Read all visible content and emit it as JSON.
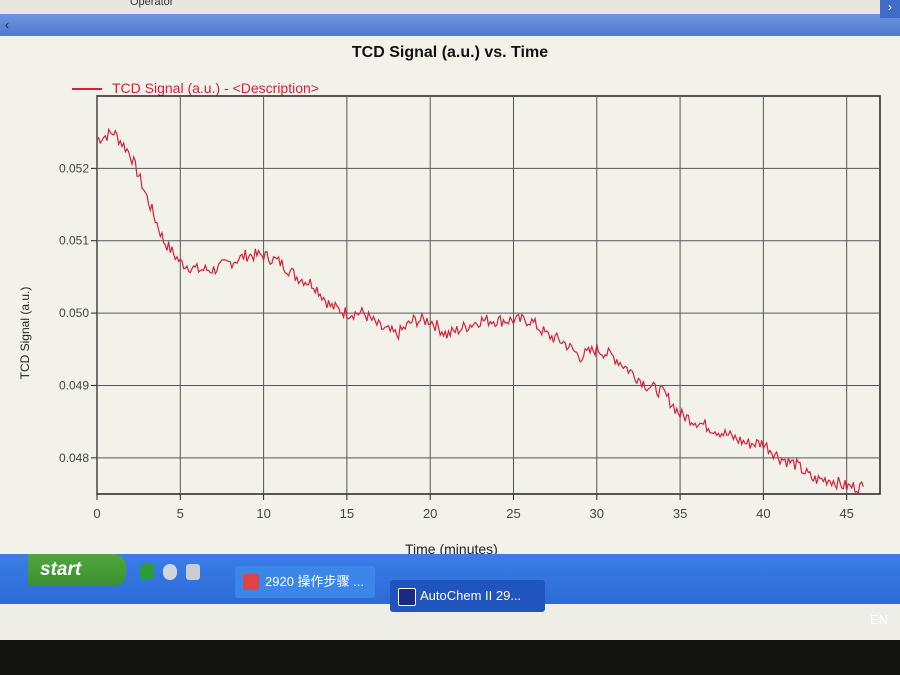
{
  "window": {
    "top_text": "Operator",
    "scroll_left": "‹",
    "scroll_right": "›"
  },
  "chart_data": {
    "type": "line",
    "title": "TCD Signal (a.u.) vs. Time",
    "xlabel": "Time (minutes)",
    "ylabel": "TCD Signal (a.u.)",
    "xlim": [
      0,
      47
    ],
    "ylim": [
      0.0475,
      0.053
    ],
    "xticks": [
      "0",
      "5",
      "10",
      "15",
      "20",
      "25",
      "30",
      "35",
      "40",
      "45"
    ],
    "yticks": [
      "0.048",
      "0.049",
      "0.050",
      "0.051",
      "0.052"
    ],
    "grid": true,
    "legend_position": "top-left",
    "series": [
      {
        "name": "TCD Signal (a.u.) - <Description>",
        "color": "#d8203a",
        "x": [
          0,
          1,
          2,
          3,
          4,
          5,
          6,
          7,
          8,
          9,
          10,
          11,
          12,
          13,
          14,
          15,
          16,
          17,
          18,
          19,
          20,
          21,
          22,
          23,
          24,
          25,
          26,
          27,
          28,
          29,
          30,
          31,
          32,
          33,
          34,
          35,
          36,
          37,
          38,
          39,
          40,
          41,
          42,
          43,
          44,
          45,
          46
        ],
        "y": [
          0.0524,
          0.0525,
          0.0522,
          0.0516,
          0.051,
          0.0507,
          0.0506,
          0.0506,
          0.0507,
          0.0508,
          0.0508,
          0.0507,
          0.0505,
          0.0504,
          0.0501,
          0.05,
          0.05,
          0.0498,
          0.0497,
          0.0499,
          0.0499,
          0.0497,
          0.0498,
          0.0499,
          0.0499,
          0.0499,
          0.0499,
          0.0497,
          0.0496,
          0.0494,
          0.0495,
          0.0494,
          0.0492,
          0.049,
          0.0489,
          0.0486,
          0.0485,
          0.0484,
          0.0483,
          0.0482,
          0.0482,
          0.048,
          0.0479,
          0.0477,
          0.0477,
          0.0476,
          0.0476
        ]
      }
    ]
  },
  "taskbar": {
    "start_label": "start",
    "tasks": [
      {
        "label": "2920 操作步骤 ..."
      },
      {
        "label": "AutoChem II 29..."
      }
    ],
    "language": "EN"
  }
}
